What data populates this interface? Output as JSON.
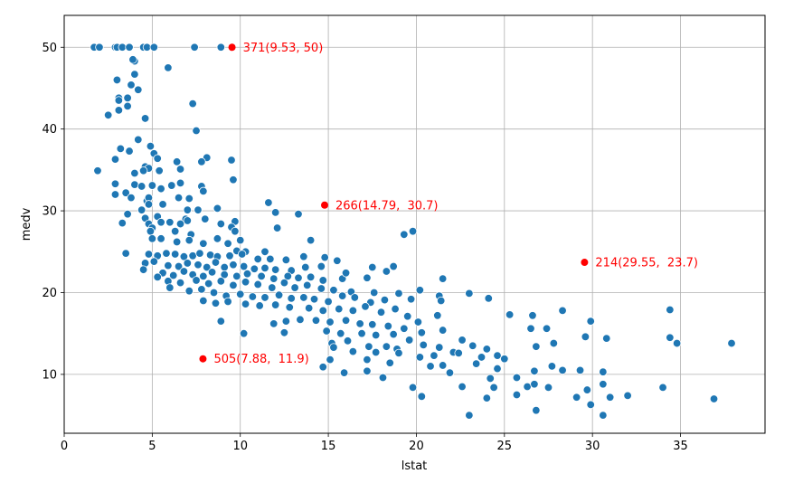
{
  "chart_data": {
    "type": "scatter",
    "title": "",
    "xlabel": "lstat",
    "ylabel": "medv",
    "xlim": [
      0,
      39.8
    ],
    "ylim": [
      2.8,
      53.9
    ],
    "grid": true,
    "xticks": [
      0,
      5,
      10,
      15,
      20,
      25,
      30,
      35
    ],
    "yticks": [
      10,
      20,
      30,
      40,
      50
    ],
    "xtick_labels": [
      "0",
      "5",
      "10",
      "15",
      "20",
      "25",
      "30",
      "35"
    ],
    "ytick_labels": [
      "10",
      "20",
      "30",
      "40",
      "50"
    ],
    "point_color": "#1f77b4",
    "highlight_color": "#ff0000",
    "series": [
      {
        "points": [
          [
            1.7,
            50
          ],
          [
            2.0,
            50
          ],
          [
            2.9,
            50
          ],
          [
            3.0,
            50
          ],
          [
            3.3,
            50
          ],
          [
            3.7,
            50
          ],
          [
            4.5,
            50
          ],
          [
            4.7,
            50
          ],
          [
            5.1,
            50
          ],
          [
            7.4,
            50
          ],
          [
            8.9,
            50
          ],
          [
            4.0,
            48.3
          ],
          [
            3.9,
            48.5
          ],
          [
            5.9,
            47.5
          ],
          [
            4.0,
            46.7
          ],
          [
            3.0,
            46.0
          ],
          [
            3.8,
            45.4
          ],
          [
            4.2,
            44.8
          ],
          [
            3.1,
            43.8
          ],
          [
            3.6,
            43.8
          ],
          [
            3.1,
            43.5
          ],
          [
            7.3,
            43.1
          ],
          [
            3.6,
            42.8
          ],
          [
            3.1,
            42.3
          ],
          [
            2.5,
            41.7
          ],
          [
            4.6,
            41.3
          ],
          [
            7.5,
            39.8
          ],
          [
            4.2,
            38.7
          ],
          [
            4.9,
            37.9
          ],
          [
            3.2,
            37.6
          ],
          [
            3.7,
            37.3
          ],
          [
            5.1,
            37.0
          ],
          [
            5.3,
            36.4
          ],
          [
            8.1,
            36.5
          ],
          [
            9.5,
            36.2
          ],
          [
            2.9,
            36.3
          ],
          [
            6.4,
            36.0
          ],
          [
            7.8,
            36.0
          ],
          [
            1.9,
            34.9
          ],
          [
            4.6,
            35.4
          ],
          [
            4.8,
            35.2
          ],
          [
            4.5,
            34.9
          ],
          [
            5.4,
            34.9
          ],
          [
            6.6,
            35.1
          ],
          [
            4.0,
            34.6
          ],
          [
            9.6,
            33.8
          ],
          [
            2.9,
            33.3
          ],
          [
            4.0,
            33.2
          ],
          [
            4.4,
            33.0
          ],
          [
            5.0,
            33.1
          ],
          [
            6.1,
            33.1
          ],
          [
            6.6,
            33.4
          ],
          [
            7.8,
            33.0
          ],
          [
            5.5,
            32.7
          ],
          [
            7.9,
            32.4
          ],
          [
            3.5,
            32.2
          ],
          [
            2.9,
            32.0
          ],
          [
            3.8,
            31.6
          ],
          [
            6.5,
            31.6
          ],
          [
            7.1,
            31.5
          ],
          [
            4.7,
            31.2
          ],
          [
            4.8,
            31.6
          ],
          [
            5.6,
            30.8
          ],
          [
            11.6,
            31.0
          ],
          [
            8.7,
            30.3
          ],
          [
            4.4,
            30.1
          ],
          [
            4.8,
            30.8
          ],
          [
            7.0,
            30.1
          ],
          [
            7.6,
            30.1
          ],
          [
            12.0,
            29.8
          ],
          [
            13.3,
            29.6
          ],
          [
            3.6,
            29.6
          ],
          [
            4.6,
            29.1
          ],
          [
            5.3,
            29.3
          ],
          [
            6.9,
            29.0
          ],
          [
            7.0,
            28.8
          ],
          [
            8.0,
            29.0
          ],
          [
            3.3,
            28.5
          ],
          [
            4.8,
            28.4
          ],
          [
            5.5,
            28.6
          ],
          [
            6.0,
            28.6
          ],
          [
            6.6,
            28.4
          ],
          [
            8.9,
            28.4
          ],
          [
            9.7,
            28.7
          ],
          [
            9.5,
            28.0
          ],
          [
            12.1,
            27.9
          ],
          [
            19.3,
            27.1
          ],
          [
            19.8,
            27.5
          ],
          [
            5.0,
            27.9
          ],
          [
            4.9,
            27.5
          ],
          [
            6.3,
            27.5
          ],
          [
            7.2,
            27.1
          ],
          [
            8.7,
            26.6
          ],
          [
            9.7,
            27.5
          ],
          [
            10.0,
            26.4
          ],
          [
            14.0,
            26.4
          ],
          [
            5.0,
            26.6
          ],
          [
            5.5,
            26.6
          ],
          [
            6.4,
            26.2
          ],
          [
            7.1,
            26.4
          ],
          [
            7.9,
            26.0
          ],
          [
            9.3,
            26.0
          ],
          [
            9.8,
            25.1
          ],
          [
            10.3,
            25.0
          ],
          [
            11.4,
            25.0
          ],
          [
            3.5,
            24.8
          ],
          [
            4.8,
            24.7
          ],
          [
            5.3,
            24.5
          ],
          [
            5.8,
            24.8
          ],
          [
            6.3,
            24.7
          ],
          [
            6.8,
            24.4
          ],
          [
            7.3,
            24.5
          ],
          [
            7.7,
            24.8
          ],
          [
            8.3,
            24.6
          ],
          [
            8.7,
            24.4
          ],
          [
            9.4,
            24.5
          ],
          [
            10.1,
            24.7
          ],
          [
            11.0,
            24.1
          ],
          [
            11.7,
            24.1
          ],
          [
            12.6,
            24.0
          ],
          [
            13.6,
            24.4
          ],
          [
            14.8,
            24.3
          ],
          [
            15.5,
            23.9
          ],
          [
            4.6,
            23.6
          ],
          [
            5.1,
            23.8
          ],
          [
            5.9,
            23.3
          ],
          [
            6.5,
            23.2
          ],
          [
            7.0,
            23.6
          ],
          [
            7.6,
            23.4
          ],
          [
            8.1,
            23.1
          ],
          [
            8.6,
            23.7
          ],
          [
            9.1,
            23.1
          ],
          [
            9.6,
            23.4
          ],
          [
            10.2,
            23.2
          ],
          [
            10.8,
            22.9
          ],
          [
            11.4,
            23.0
          ],
          [
            12.0,
            22.8
          ],
          [
            12.9,
            22.7
          ],
          [
            13.7,
            23.1
          ],
          [
            14.6,
            23.2
          ],
          [
            17.5,
            23.1
          ],
          [
            18.7,
            23.2
          ],
          [
            4.5,
            22.8
          ],
          [
            5.6,
            22.4
          ],
          [
            6.2,
            22.1
          ],
          [
            6.8,
            22.6
          ],
          [
            7.3,
            22.2
          ],
          [
            7.9,
            22.0
          ],
          [
            8.4,
            22.5
          ],
          [
            9.1,
            22.2
          ],
          [
            9.8,
            22.0
          ],
          [
            10.4,
            22.3
          ],
          [
            11.2,
            22.0
          ],
          [
            11.9,
            21.7
          ],
          [
            12.7,
            22.0
          ],
          [
            13.3,
            21.8
          ],
          [
            14.0,
            21.9
          ],
          [
            14.7,
            21.5
          ],
          [
            15.8,
            21.7
          ],
          [
            16.0,
            22.4
          ],
          [
            17.2,
            21.8
          ],
          [
            18.3,
            22.6
          ],
          [
            21.5,
            21.7
          ],
          [
            5.3,
            21.9
          ],
          [
            5.9,
            21.4
          ],
          [
            6.6,
            21.2
          ],
          [
            7.5,
            21.5
          ],
          [
            8.2,
            21.1
          ],
          [
            8.9,
            21.4
          ],
          [
            9.6,
            20.9
          ],
          [
            10.3,
            21.3
          ],
          [
            11.0,
            21.0
          ],
          [
            11.8,
            20.6
          ],
          [
            12.5,
            21.2
          ],
          [
            13.1,
            20.6
          ],
          [
            13.8,
            20.9
          ],
          [
            14.6,
            20.5
          ],
          [
            15.3,
            20.3
          ],
          [
            16.3,
            20.1
          ],
          [
            17.6,
            20.0
          ],
          [
            19.0,
            19.9
          ],
          [
            20.2,
            20.3
          ],
          [
            21.3,
            19.6
          ],
          [
            23.0,
            19.9
          ],
          [
            24.1,
            19.3
          ],
          [
            6.0,
            20.6
          ],
          [
            7.1,
            20.2
          ],
          [
            7.8,
            20.4
          ],
          [
            8.5,
            20.0
          ],
          [
            9.2,
            19.6
          ],
          [
            10.0,
            19.8
          ],
          [
            10.7,
            19.5
          ],
          [
            11.4,
            19.4
          ],
          [
            12.2,
            19.7
          ],
          [
            12.9,
            19.3
          ],
          [
            13.6,
            19.4
          ],
          [
            14.2,
            19.2
          ],
          [
            15.0,
            18.9
          ],
          [
            15.8,
            19.6
          ],
          [
            16.5,
            19.4
          ],
          [
            17.4,
            18.8
          ],
          [
            18.2,
            19.1
          ],
          [
            19.7,
            19.2
          ],
          [
            21.4,
            19.0
          ],
          [
            7.9,
            19.0
          ],
          [
            8.6,
            18.7
          ],
          [
            9.3,
            18.9
          ],
          [
            10.3,
            18.6
          ],
          [
            11.1,
            18.4
          ],
          [
            12.0,
            18.5
          ],
          [
            12.8,
            18.2
          ],
          [
            13.9,
            18.1
          ],
          [
            14.7,
            17.8
          ],
          [
            15.6,
            18.0
          ],
          [
            16.4,
            17.8
          ],
          [
            17.1,
            18.3
          ],
          [
            18.0,
            17.6
          ],
          [
            18.8,
            18.0
          ],
          [
            19.5,
            17.1
          ],
          [
            21.2,
            17.2
          ],
          [
            25.3,
            17.3
          ],
          [
            26.6,
            17.2
          ],
          [
            28.3,
            17.8
          ],
          [
            34.4,
            17.9
          ],
          [
            8.9,
            16.5
          ],
          [
            11.9,
            16.2
          ],
          [
            12.6,
            16.5
          ],
          [
            13.4,
            16.7
          ],
          [
            14.3,
            16.6
          ],
          [
            15.1,
            16.4
          ],
          [
            16.0,
            16.6
          ],
          [
            16.8,
            16.2
          ],
          [
            17.5,
            16.1
          ],
          [
            18.4,
            15.9
          ],
          [
            19.3,
            15.6
          ],
          [
            20.1,
            16.4
          ],
          [
            21.5,
            15.4
          ],
          [
            26.5,
            15.6
          ],
          [
            27.4,
            15.6
          ],
          [
            29.9,
            16.5
          ],
          [
            10.2,
            15.0
          ],
          [
            12.5,
            15.1
          ],
          [
            14.9,
            15.3
          ],
          [
            15.7,
            15.0
          ],
          [
            16.9,
            15.0
          ],
          [
            17.7,
            14.8
          ],
          [
            18.7,
            14.9
          ],
          [
            19.6,
            14.2
          ],
          [
            20.3,
            15.1
          ],
          [
            22.6,
            14.2
          ],
          [
            26.8,
            13.4
          ],
          [
            27.8,
            13.8
          ],
          [
            29.6,
            14.6
          ],
          [
            30.8,
            14.4
          ],
          [
            34.4,
            14.5
          ],
          [
            34.8,
            13.8
          ],
          [
            37.9,
            13.8
          ],
          [
            15.2,
            13.8
          ],
          [
            16.1,
            14.1
          ],
          [
            17.3,
            13.4
          ],
          [
            18.3,
            13.4
          ],
          [
            18.9,
            13.1
          ],
          [
            20.4,
            13.6
          ],
          [
            21.3,
            13.3
          ],
          [
            22.1,
            12.7
          ],
          [
            23.2,
            13.5
          ],
          [
            24.0,
            13.1
          ],
          [
            15.3,
            13.3
          ],
          [
            16.4,
            12.8
          ],
          [
            17.7,
            12.7
          ],
          [
            19.0,
            12.6
          ],
          [
            20.2,
            12.1
          ],
          [
            21.0,
            12.3
          ],
          [
            22.4,
            12.6
          ],
          [
            23.7,
            12.1
          ],
          [
            24.6,
            12.3
          ],
          [
            25.0,
            11.9
          ],
          [
            15.1,
            11.8
          ],
          [
            17.2,
            11.8
          ],
          [
            18.5,
            11.4
          ],
          [
            20.8,
            11.0
          ],
          [
            21.5,
            11.1
          ],
          [
            23.4,
            11.3
          ],
          [
            24.6,
            10.7
          ],
          [
            27.7,
            11.0
          ],
          [
            29.3,
            10.5
          ],
          [
            14.7,
            10.9
          ],
          [
            15.9,
            10.2
          ],
          [
            17.2,
            10.4
          ],
          [
            21.9,
            10.2
          ],
          [
            24.2,
            9.5
          ],
          [
            25.7,
            9.6
          ],
          [
            26.7,
            10.4
          ],
          [
            28.3,
            10.5
          ],
          [
            30.6,
            10.3
          ],
          [
            18.1,
            9.6
          ],
          [
            19.8,
            8.4
          ],
          [
            22.6,
            8.5
          ],
          [
            24.4,
            8.4
          ],
          [
            26.3,
            8.5
          ],
          [
            26.7,
            8.8
          ],
          [
            27.5,
            8.4
          ],
          [
            29.7,
            8.1
          ],
          [
            30.6,
            8.8
          ],
          [
            31.0,
            7.2
          ],
          [
            32.0,
            7.4
          ],
          [
            34.0,
            8.4
          ],
          [
            36.9,
            7.0
          ],
          [
            20.3,
            7.3
          ],
          [
            24.0,
            7.1
          ],
          [
            25.7,
            7.5
          ],
          [
            29.1,
            7.2
          ],
          [
            29.9,
            6.3
          ],
          [
            23.0,
            5.0
          ],
          [
            26.8,
            5.6
          ],
          [
            30.6,
            5.0
          ]
        ]
      },
      {
        "highlighted": [
          {
            "x": 9.53,
            "y": 50,
            "label": "371(9.53, 50)"
          },
          {
            "x": 14.79,
            "y": 30.7,
            "label": "266(14.79,  30.7)"
          },
          {
            "x": 29.55,
            "y": 23.7,
            "label": "214(29.55,  23.7)"
          },
          {
            "x": 7.88,
            "y": 11.9,
            "label": "505(7.88,  11.9)"
          }
        ]
      }
    ]
  }
}
